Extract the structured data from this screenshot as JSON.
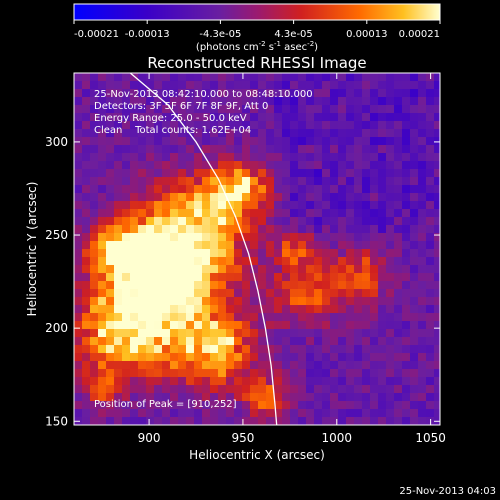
{
  "chart_data": {
    "type": "heatmap",
    "title": "Reconstructed RHESSI Image",
    "xlabel": "Heliocentric X (arcsec)",
    "ylabel": "Heliocentric Y (arcsec)",
    "xlim": [
      860,
      1055
    ],
    "ylim": [
      148,
      337
    ],
    "xticks": [
      900,
      950,
      1000,
      1050
    ],
    "yticks": [
      150,
      200,
      250,
      300
    ],
    "colorbar": {
      "ticks": [
        "-0.00021",
        "-0.00013",
        "-4.3e-05",
        "4.3e-05",
        "0.00013",
        "0.00021"
      ],
      "unit_parts": [
        "(photons cm",
        "-2",
        " s",
        "-1",
        " asec",
        "-2",
        ")"
      ],
      "range": [
        -0.00021,
        0.00021
      ]
    },
    "info_lines": [
      "25-Nov-2013 08:42:10.000 to 08:48:10.000",
      "Detectors: 3F 5F 6F 7F 8F 9F, Att 0",
      "Energy Range: 25.0 - 50.0 keV",
      "Clean    Total counts: 1.62E+04"
    ],
    "peak_label": "Position of Peak = [910,252]",
    "timestamp": "25-Nov-2013 04:03",
    "limb": [
      [
        890,
        337
      ],
      [
        910,
        320
      ],
      [
        925,
        300
      ],
      [
        937,
        280
      ],
      [
        946,
        260
      ],
      [
        953,
        240
      ],
      [
        958,
        220
      ],
      [
        962,
        200
      ],
      [
        965,
        180
      ],
      [
        967,
        160
      ],
      [
        968,
        148
      ]
    ]
  }
}
